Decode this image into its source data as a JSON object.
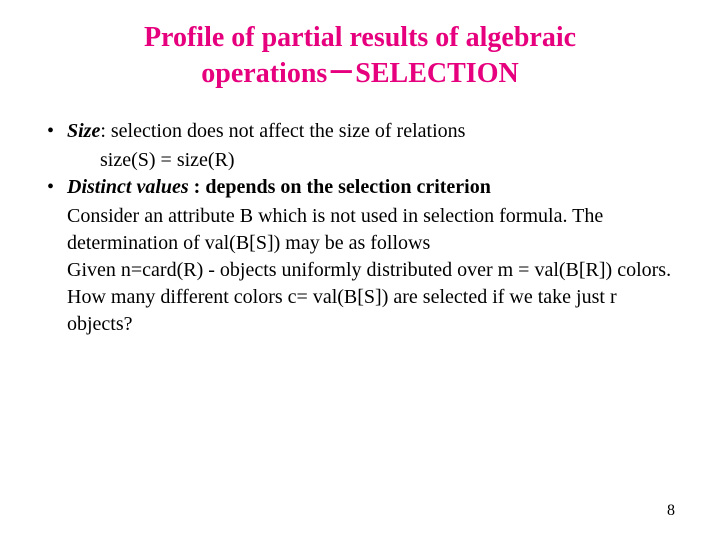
{
  "title_line1": "Profile of partial results of algebraic",
  "title_line2": "operations－SELECTION",
  "bullet1_label": "Size",
  "bullet1_text": ": selection does not affect the size of relations",
  "bullet1_sub": "size(S) = size(R)",
  "bullet2_label": "Distinct values",
  "bullet2_text": " : depends on the selection criterion",
  "bullet2_para1": "Consider an attribute B which is not used in selection formula. The determination of val(B[S]) may be as follows",
  "bullet2_para2": "Given n=card(R) - objects uniformly distributed over m = val(B[R]) colors. How many different colors c= val(B[S]) are selected if we take just r objects?",
  "page_number": "8",
  "colors": {
    "title": "#e6007e",
    "text": "#000000",
    "background": "#ffffff"
  },
  "fonts": {
    "family": "Times New Roman",
    "title_size": 28,
    "body_size": 20,
    "page_num_size": 16
  }
}
